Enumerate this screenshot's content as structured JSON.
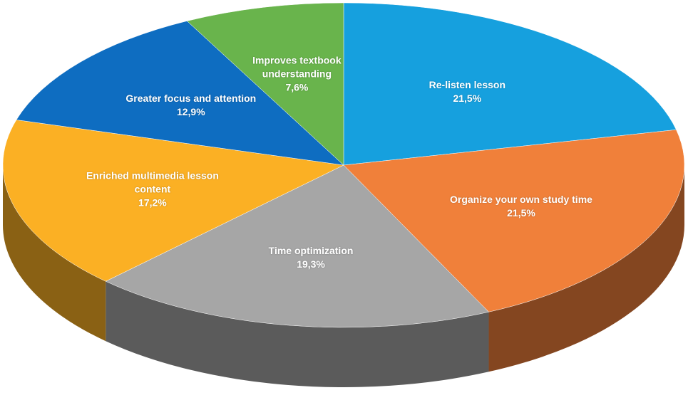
{
  "chart_data": {
    "type": "pie",
    "categories": [
      "Re-listen lesson",
      "Organize your own study time",
      "Time optimization",
      "Enriched multimedia lesson content",
      "Greater focus and attention",
      "Improves textbook understanding"
    ],
    "values": [
      21.5,
      21.5,
      19.3,
      17.2,
      12.9,
      7.6
    ],
    "value_labels": [
      "21,5%",
      "21,5%",
      "19,3%",
      "17,2%",
      "12,9%",
      "7,6%"
    ],
    "colors": [
      "#16a0de",
      "#f0803a",
      "#a6a6a6",
      "#fbb024",
      "#0e6dc1",
      "#69b44c"
    ]
  }
}
